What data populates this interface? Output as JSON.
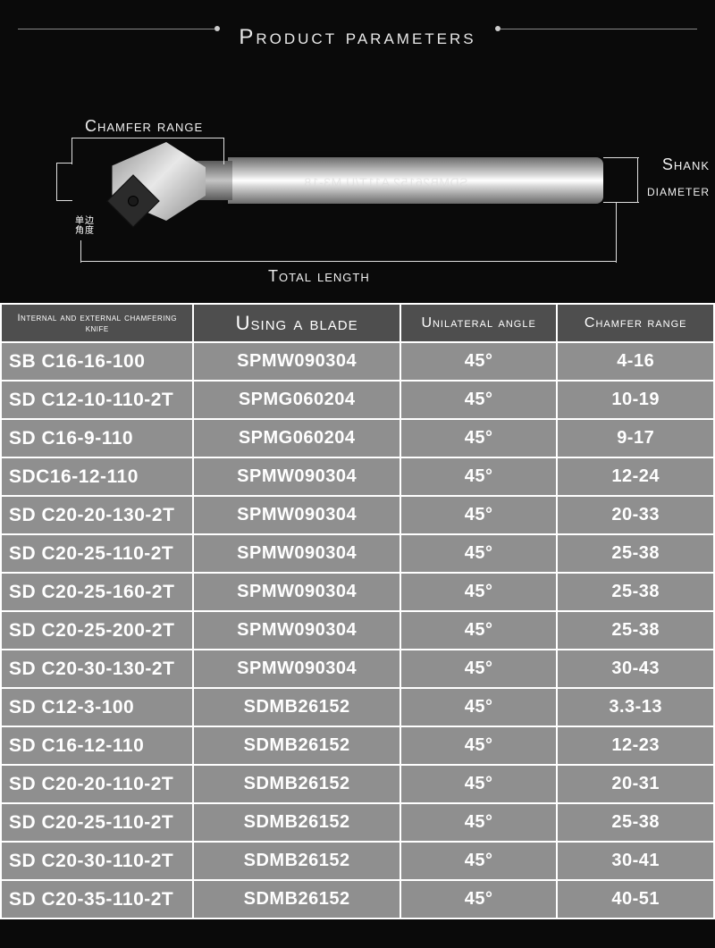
{
  "title": "Product parameters",
  "diagram": {
    "chamfer_label": "Chamfer range",
    "shank_label_l1": "Shank",
    "shank_label_l2": "diameter",
    "total_length_label": "Total length",
    "cn_label": "单边\n角度",
    "overlay_text": "SDMB26152 A11T/U M3-18"
  },
  "colors": {
    "page_bg": "#0a0a0a",
    "header_bg": "#4e4e4e",
    "cell_bg": "#8f8f8f",
    "border": "#ffffff",
    "text": "#ffffff",
    "title_text": "#e8e8e8"
  },
  "table": {
    "columns": [
      "Internal and external chamfering knife",
      "Using a blade",
      "Unilateral angle",
      "Chamfer range"
    ],
    "rows": [
      [
        "SB C16-16-100",
        "SPMW090304",
        "45°",
        "4-16"
      ],
      [
        "SD C12-10-110-2T",
        "SPMG060204",
        "45°",
        "10-19"
      ],
      [
        "SD C16-9-110",
        "SPMG060204",
        "45°",
        "9-17"
      ],
      [
        "SDC16-12-110",
        "SPMW090304",
        "45°",
        "12-24"
      ],
      [
        "SD C20-20-130-2T",
        "SPMW090304",
        "45°",
        "20-33"
      ],
      [
        "SD C20-25-110-2T",
        "SPMW090304",
        "45°",
        "25-38"
      ],
      [
        "SD C20-25-160-2T",
        "SPMW090304",
        "45°",
        "25-38"
      ],
      [
        "SD C20-25-200-2T",
        "SPMW090304",
        "45°",
        "25-38"
      ],
      [
        "SD C20-30-130-2T",
        "SPMW090304",
        "45°",
        "30-43"
      ],
      [
        "SD C12-3-100",
        "SDMB26152",
        "45°",
        "3.3-13"
      ],
      [
        "SD C16-12-110",
        "SDMB26152",
        "45°",
        "12-23"
      ],
      [
        "SD C20-20-110-2T",
        "SDMB26152",
        "45°",
        "20-31"
      ],
      [
        "SD C20-25-110-2T",
        "SDMB26152",
        "45°",
        "25-38"
      ],
      [
        "SD C20-30-110-2T",
        "SDMB26152",
        "45°",
        "30-41"
      ],
      [
        "SD C20-35-110-2T",
        "SDMB26152",
        "45°",
        "40-51"
      ]
    ]
  }
}
